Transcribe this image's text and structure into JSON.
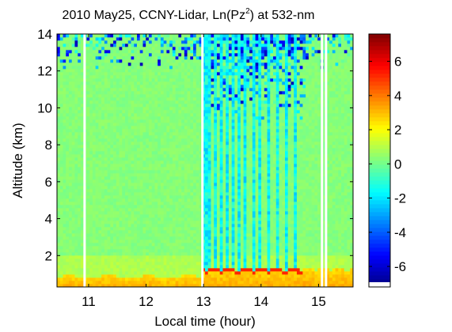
{
  "chart_data": {
    "type": "heatmap",
    "title": "2010 May25, CCNY-Lidar, Ln(Pz",
    "title_sup": "2",
    "title_end": ") at 532-nm",
    "xlabel": "Local time (hour)",
    "ylabel": "Altitude (km)",
    "xlim": [
      10.45,
      15.6
    ],
    "ylim": [
      0.3,
      14
    ],
    "x_ticks": [
      11,
      12,
      13,
      14,
      15
    ],
    "y_ticks": [
      2,
      4,
      6,
      8,
      10,
      12,
      14
    ],
    "colorbar": {
      "range": [
        -7.2,
        7.6
      ],
      "ticks": [
        -6,
        -4,
        -2,
        0,
        2,
        4,
        6
      ],
      "colormap": "jet"
    },
    "data_gaps_hours": [
      10.93,
      12.98,
      15.06,
      15.13
    ],
    "cloud_columns_hours": [
      13.02,
      13.1,
      13.22,
      13.32,
      13.42,
      13.5,
      13.62,
      13.72,
      13.87,
      13.98,
      14.13,
      14.28,
      14.43,
      14.6
    ],
    "layer_features": {
      "boundary_layer_top_km_before_13h": 0.85,
      "boundary_layer_top_km_after_13h": 1.3,
      "boundary_layer_value": 3.5,
      "free_troposphere_value": 0.3,
      "noise_value_range": [
        -6.5,
        1
      ]
    }
  }
}
